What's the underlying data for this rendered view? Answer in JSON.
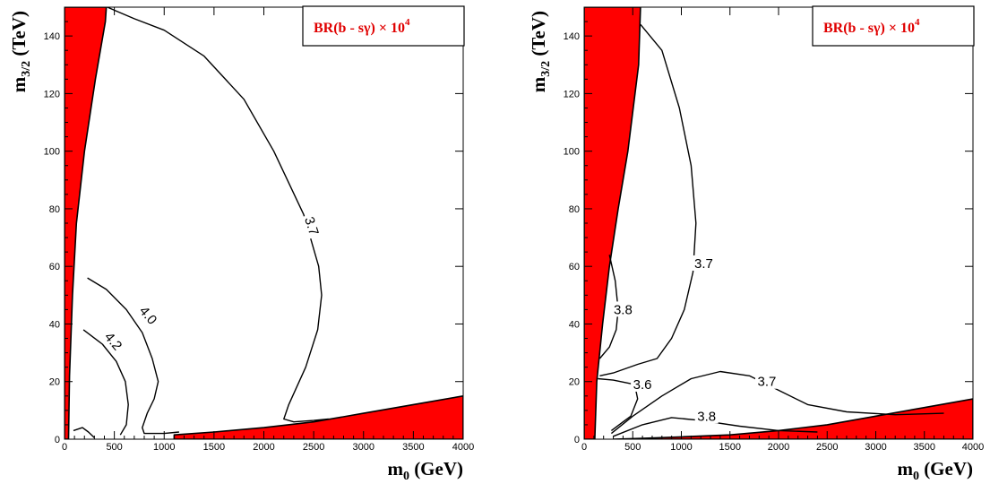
{
  "chart_data": [
    {
      "type": "contour",
      "title": "BR(b - sγ) × 10",
      "title_exponent": "4",
      "xlabel": "m",
      "xlabel_sub": "0",
      "xlabel_unit": " (GeV)",
      "ylabel": "m",
      "ylabel_sub": "3/2",
      "ylabel_unit": " (TeV)",
      "xlim": [
        0,
        4000
      ],
      "ylim": [
        0,
        150
      ],
      "xticks": [
        "0",
        "500",
        "1000",
        "1500",
        "2000",
        "2500",
        "3000",
        "3500",
        "4000"
      ],
      "yticks": [
        "0",
        "20",
        "40",
        "60",
        "80",
        "100",
        "120",
        "140"
      ],
      "excluded_color": "#ff0000",
      "excluded_regions": [
        [
          [
            0,
            0
          ],
          [
            40,
            0
          ],
          [
            50,
            22
          ],
          [
            80,
            50
          ],
          [
            120,
            75
          ],
          [
            200,
            100
          ],
          [
            310,
            125
          ],
          [
            410,
            145
          ],
          [
            420,
            150
          ],
          [
            0,
            150
          ]
        ],
        [
          [
            1100,
            0
          ],
          [
            4000,
            0
          ],
          [
            4000,
            15
          ],
          [
            3500,
            12
          ],
          [
            3000,
            9
          ],
          [
            2500,
            6
          ],
          [
            2000,
            4
          ],
          [
            1500,
            2.5
          ],
          [
            1100,
            1.5
          ]
        ]
      ],
      "contours": [
        {
          "label": "3.7",
          "color": "#000000",
          "points": [
            [
              430,
              150
            ],
            [
              700,
              146
            ],
            [
              1000,
              142
            ],
            [
              1400,
              133
            ],
            [
              1800,
              118
            ],
            [
              2100,
              100
            ],
            [
              2400,
              78
            ],
            [
              2550,
              60
            ],
            [
              2580,
              50
            ],
            [
              2540,
              38
            ],
            [
              2420,
              25
            ],
            [
              2250,
              12
            ],
            [
              2200,
              7
            ],
            [
              2300,
              6
            ],
            [
              2500,
              6.5
            ],
            [
              2650,
              7
            ]
          ]
        },
        {
          "label": "4.0",
          "color": "#000000",
          "points": [
            [
              230,
              56
            ],
            [
              420,
              52
            ],
            [
              620,
              45
            ],
            [
              780,
              37
            ],
            [
              880,
              28
            ],
            [
              940,
              20
            ],
            [
              900,
              14
            ],
            [
              830,
              9
            ],
            [
              780,
              4
            ],
            [
              800,
              2
            ],
            [
              1000,
              2
            ],
            [
              1150,
              2.5
            ]
          ]
        },
        {
          "label": "4.2",
          "color": "#000000",
          "points": [
            [
              190,
              38
            ],
            [
              380,
              33
            ],
            [
              520,
              27
            ],
            [
              610,
              20
            ],
            [
              640,
              12
            ],
            [
              620,
              5
            ],
            [
              560,
              1.5
            ]
          ]
        },
        {
          "label": "",
          "color": "#000000",
          "points": [
            [
              90,
              3
            ],
            [
              180,
              4
            ],
            [
              240,
              2.5
            ],
            [
              300,
              0.5
            ]
          ]
        }
      ],
      "contour_labels": [
        {
          "text": "3.7",
          "x": 2480,
          "y": 74,
          "rotate": 72
        },
        {
          "text": "4.0",
          "x": 840,
          "y": 43,
          "rotate": 50
        },
        {
          "text": "4.2",
          "x": 490,
          "y": 34,
          "rotate": 50
        }
      ]
    },
    {
      "type": "contour",
      "title": "BR(b - sγ) × 10",
      "title_exponent": "4",
      "xlabel": "m",
      "xlabel_sub": "0",
      "xlabel_unit": " (GeV)",
      "ylabel": "m",
      "ylabel_sub": "3/2",
      "ylabel_unit": " (TeV)",
      "xlim": [
        0,
        4000
      ],
      "ylim": [
        0,
        150
      ],
      "xticks": [
        "0",
        "500",
        "1000",
        "1500",
        "2000",
        "2500",
        "3000",
        "3500",
        "4000"
      ],
      "yticks": [
        "0",
        "20",
        "40",
        "60",
        "80",
        "100",
        "120",
        "140"
      ],
      "excluded_color": "#ff0000",
      "excluded_regions": [
        [
          [
            0,
            0
          ],
          [
            110,
            0
          ],
          [
            130,
            20
          ],
          [
            190,
            40
          ],
          [
            260,
            60
          ],
          [
            350,
            80
          ],
          [
            450,
            100
          ],
          [
            560,
            130
          ],
          [
            580,
            150
          ],
          [
            0,
            150
          ]
        ],
        [
          [
            300,
            0
          ],
          [
            4000,
            0
          ],
          [
            4000,
            14
          ],
          [
            3500,
            11
          ],
          [
            3000,
            8
          ],
          [
            2500,
            5
          ],
          [
            2000,
            3
          ],
          [
            1500,
            1.5
          ],
          [
            1000,
            0.8
          ],
          [
            600,
            0.3
          ]
        ]
      ],
      "contours": [
        {
          "label": "3.7",
          "color": "#000000",
          "points": [
            [
              580,
              144
            ],
            [
              800,
              135
            ],
            [
              980,
              115
            ],
            [
              1100,
              95
            ],
            [
              1150,
              75
            ],
            [
              1120,
              58
            ],
            [
              1030,
              45
            ],
            [
              900,
              35
            ],
            [
              750,
              28
            ],
            [
              550,
              26
            ],
            [
              300,
              23
            ],
            [
              160,
              22
            ]
          ]
        },
        {
          "label": "3.8",
          "color": "#000000",
          "points": [
            [
              260,
              64
            ],
            [
              320,
              55
            ],
            [
              350,
              45
            ],
            [
              330,
              38
            ],
            [
              260,
              32
            ],
            [
              160,
              28
            ]
          ]
        },
        {
          "label": "3.6",
          "color": "#000000",
          "points": [
            [
              140,
              21
            ],
            [
              300,
              20.5
            ],
            [
              520,
              19
            ],
            [
              550,
              14
            ],
            [
              480,
              8
            ],
            [
              400,
              6
            ],
            [
              280,
              3
            ]
          ]
        },
        {
          "label": "3.7",
          "color": "#000000",
          "points": [
            [
              280,
              2
            ],
            [
              500,
              8
            ],
            [
              800,
              15
            ],
            [
              1100,
              21
            ],
            [
              1400,
              23.5
            ],
            [
              1700,
              22
            ],
            [
              2000,
              17
            ],
            [
              2300,
              12
            ],
            [
              2700,
              9.5
            ],
            [
              3200,
              8.5
            ],
            [
              3700,
              9
            ]
          ]
        },
        {
          "label": "3.8",
          "color": "#000000",
          "points": [
            [
              300,
              1
            ],
            [
              600,
              5
            ],
            [
              900,
              7.5
            ],
            [
              1200,
              6.5
            ],
            [
              1600,
              4.5
            ],
            [
              2000,
              3
            ],
            [
              2400,
              2.5
            ]
          ]
        }
      ],
      "contour_labels": [
        {
          "text": "3.7",
          "x": 1230,
          "y": 61,
          "rotate": 0
        },
        {
          "text": "3.8",
          "x": 400,
          "y": 45,
          "rotate": 0
        },
        {
          "text": "3.6",
          "x": 600,
          "y": 19,
          "rotate": 0
        },
        {
          "text": "3.7",
          "x": 1880,
          "y": 20,
          "rotate": 0
        },
        {
          "text": "3.8",
          "x": 1260,
          "y": 8,
          "rotate": 0
        }
      ]
    }
  ]
}
